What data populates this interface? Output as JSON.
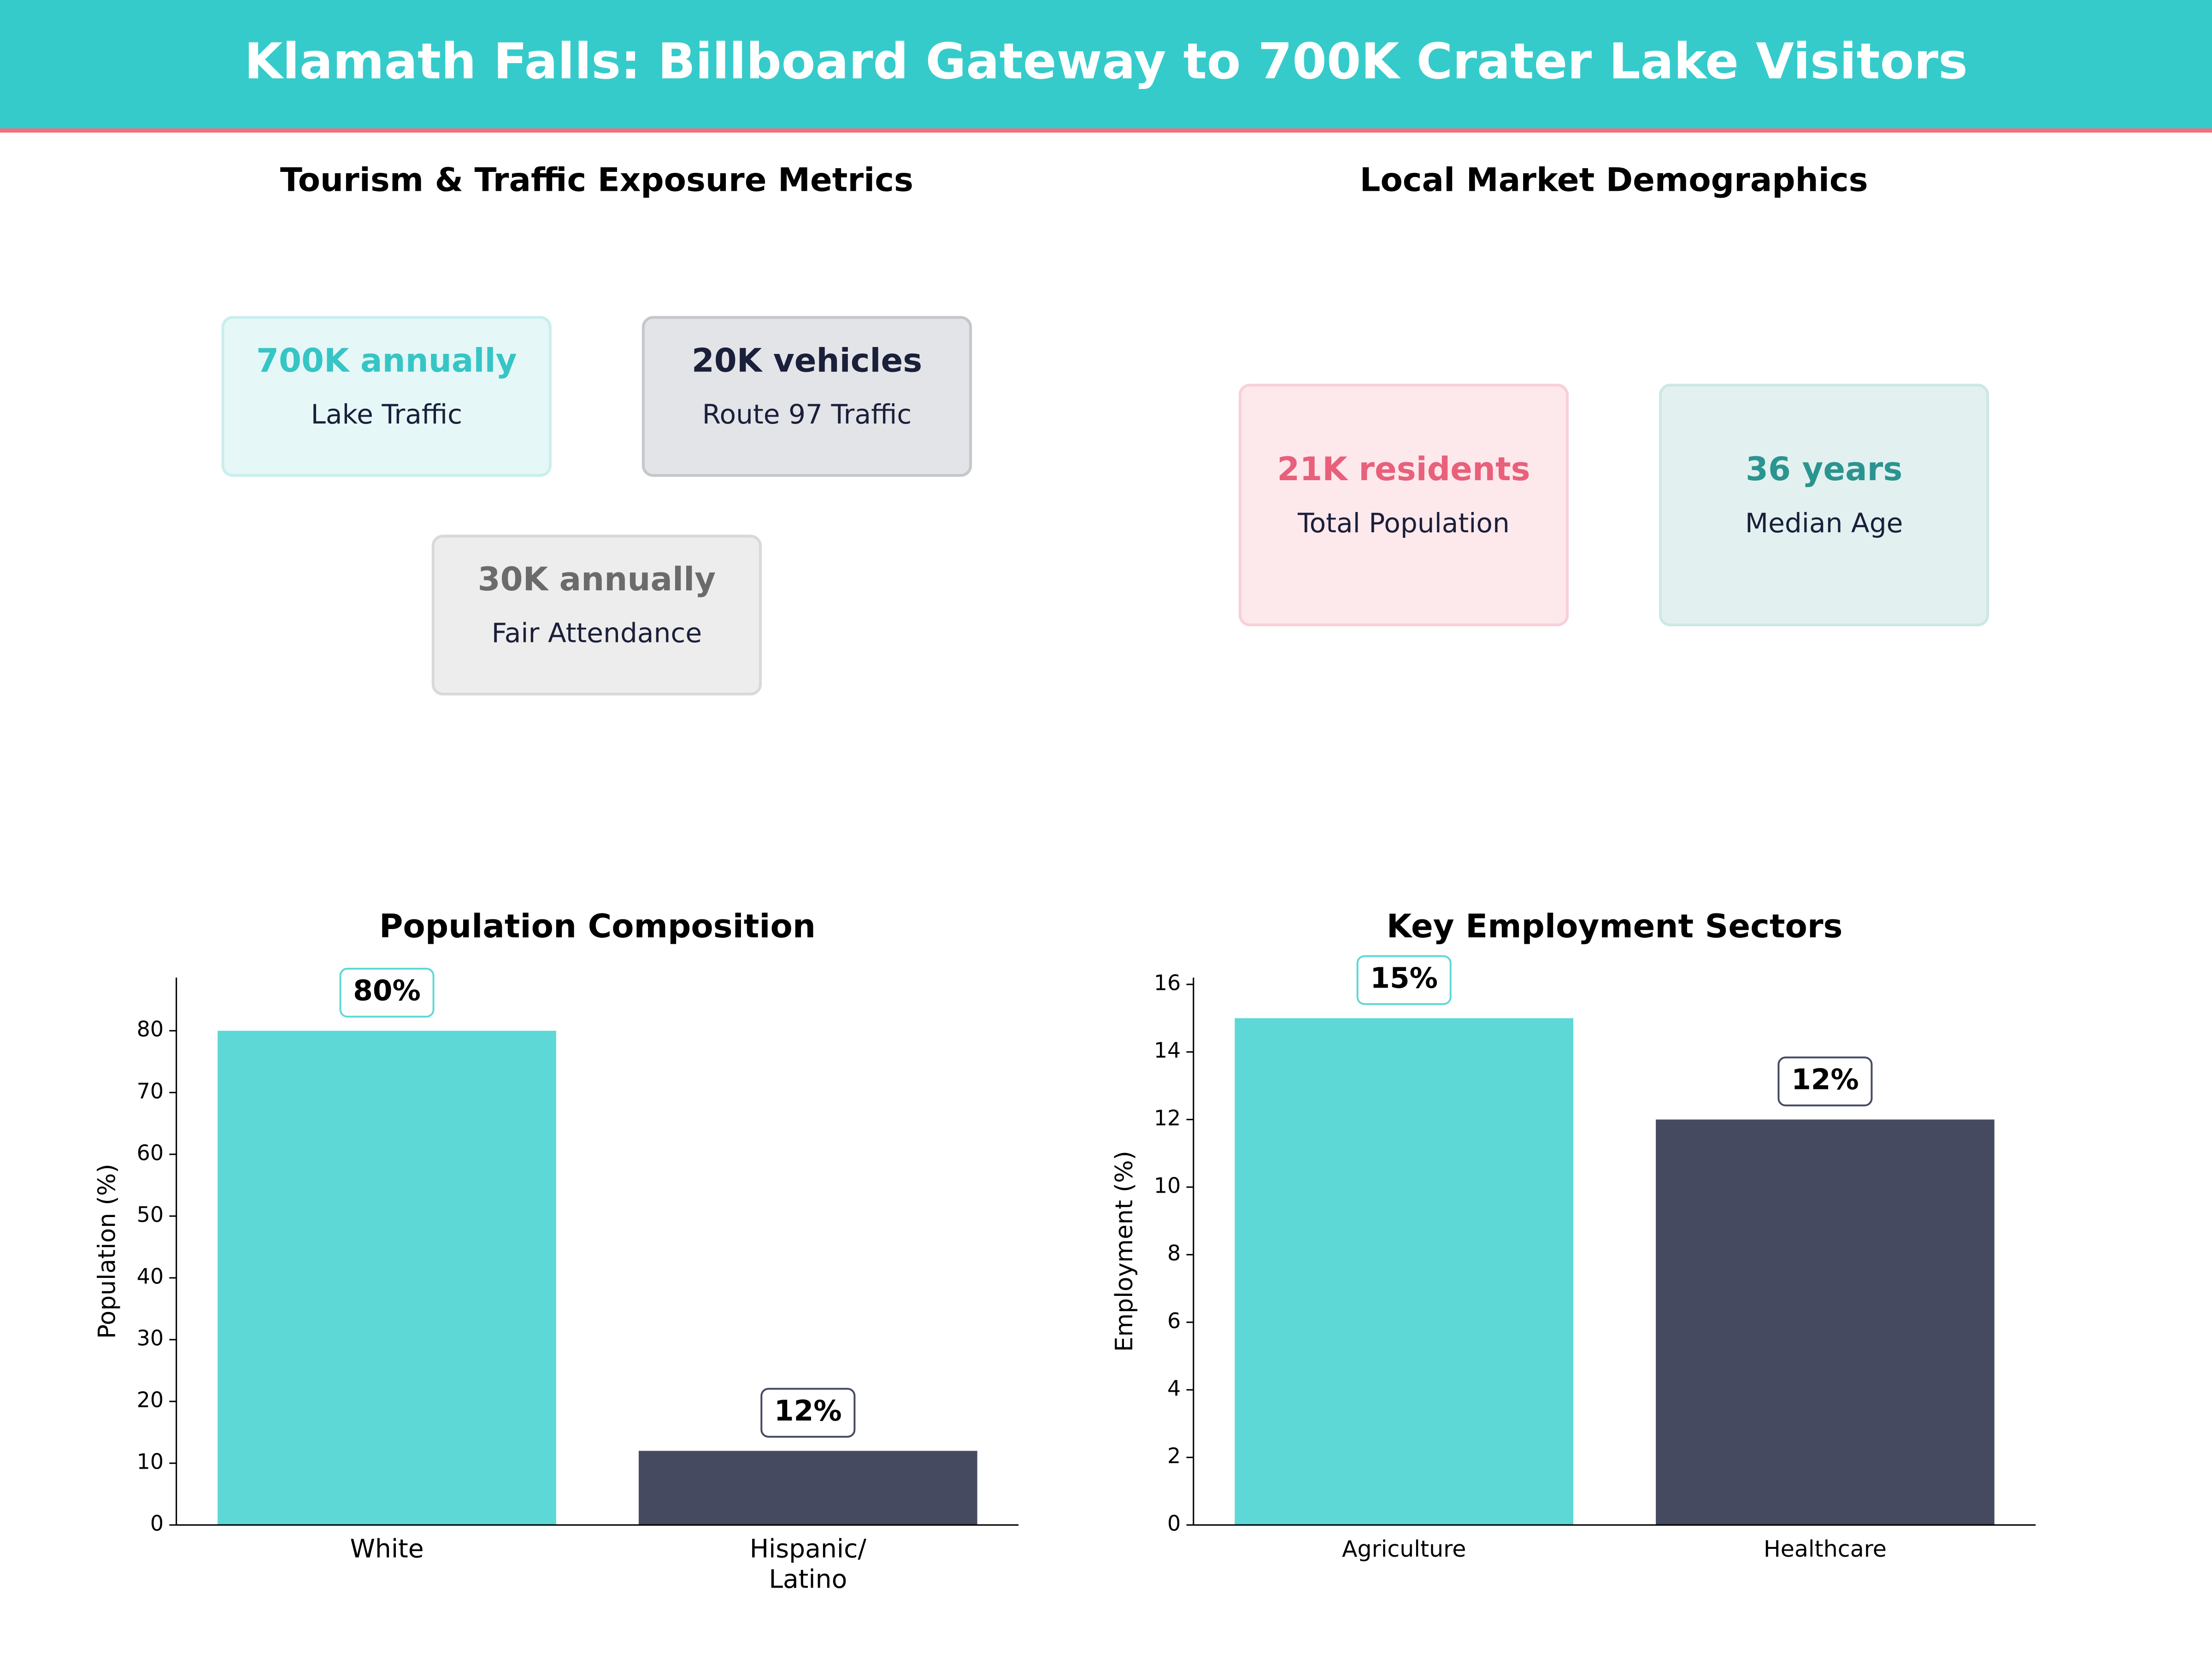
{
  "header": {
    "title": "Klamath Falls: Billboard Gateway to 700K Crater Lake Visitors"
  },
  "panels": [
    {
      "title": "Tourism & Traffic Exposure Metrics",
      "cards": [
        {
          "value": "700K annually",
          "label": "Lake Traffic"
        },
        {
          "value": "20K vehicles",
          "label": "Route 97 Traffic"
        },
        {
          "value": "30K annually",
          "label": "Fair Attendance"
        }
      ]
    },
    {
      "title": "Local Market Demographics",
      "cards": [
        {
          "value": "21K residents",
          "label": "Total Population"
        },
        {
          "value": "36 years",
          "label": "Median Age"
        }
      ]
    }
  ],
  "chart_data": [
    {
      "type": "bar",
      "title": "Population Composition",
      "ylabel": "Population (%)",
      "categories": [
        "White",
        "Hispanic/\nLatino"
      ],
      "values": [
        80,
        12
      ],
      "value_labels": [
        "80%",
        "12%"
      ],
      "colors": [
        "#5dd8d6",
        "#454a60"
      ],
      "ylim": [
        0,
        88.6
      ],
      "yticks": [
        0,
        10,
        20,
        30,
        40,
        50,
        60,
        70,
        80
      ]
    },
    {
      "type": "bar",
      "title": "Key Employment Sectors",
      "ylabel": "Employment (%)",
      "categories": [
        "Agriculture",
        "Healthcare"
      ],
      "values": [
        15,
        12
      ],
      "value_labels": [
        "15%",
        "12%"
      ],
      "colors": [
        "#5dd8d6",
        "#454a60"
      ],
      "ylim": [
        0,
        16.2
      ],
      "yticks": [
        0,
        2,
        4,
        6,
        8,
        10,
        12,
        14,
        16
      ]
    }
  ]
}
